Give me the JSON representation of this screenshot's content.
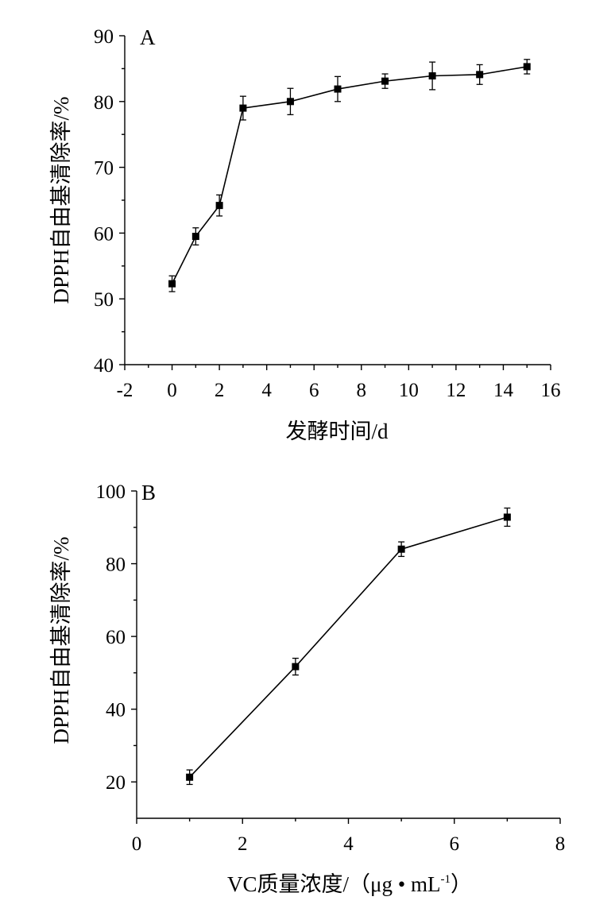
{
  "chart_data": [
    {
      "panel_label": "A",
      "type": "line",
      "xlabel": "发酵时间/d",
      "ylabel": "DPPH自由基清除率/%",
      "xlim": [
        -2,
        16
      ],
      "ylim": [
        40,
        90
      ],
      "x_ticks": [
        -2,
        0,
        2,
        4,
        6,
        8,
        10,
        12,
        14,
        16
      ],
      "y_ticks": [
        40,
        50,
        60,
        70,
        80,
        90
      ],
      "series": [
        {
          "x": [
            0,
            1,
            2,
            3,
            5,
            7,
            9,
            11,
            13,
            15
          ],
          "y": [
            52.3,
            59.5,
            64.2,
            79.0,
            80.0,
            81.9,
            83.1,
            83.9,
            84.1,
            85.3
          ],
          "error": [
            1.2,
            1.3,
            1.6,
            1.8,
            2.0,
            1.9,
            1.1,
            2.1,
            1.5,
            1.1
          ],
          "marker": "square",
          "color": "#000000"
        }
      ]
    },
    {
      "panel_label": "B",
      "type": "line",
      "xlabel": "VC质量浓度/（μg • mL",
      "xlabel_sup": "-1",
      "xlabel_end": "）",
      "ylabel": "DPPH自由基清除率/%",
      "xlim": [
        0,
        8
      ],
      "ylim": [
        10,
        100
      ],
      "x_ticks": [
        0,
        2,
        4,
        6,
        8
      ],
      "y_ticks": [
        20,
        40,
        60,
        80,
        100
      ],
      "series": [
        {
          "x": [
            1,
            3,
            5,
            7
          ],
          "y": [
            21.3,
            51.7,
            84.0,
            92.8
          ],
          "error": [
            2.0,
            2.3,
            2.0,
            2.5
          ],
          "marker": "square",
          "color": "#000000"
        }
      ]
    }
  ]
}
